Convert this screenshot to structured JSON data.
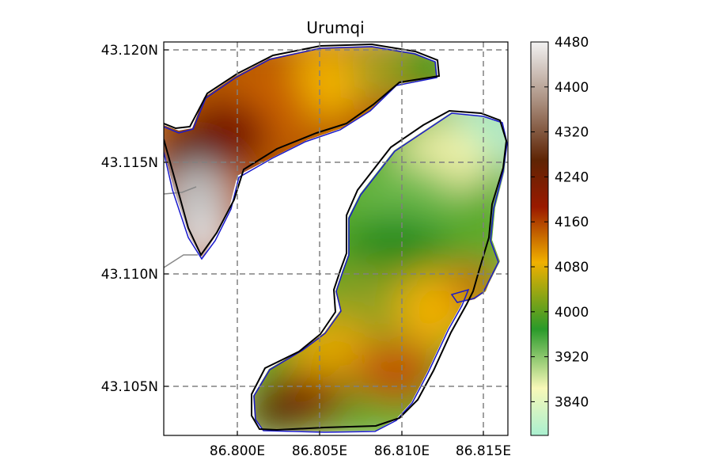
{
  "chart_data": {
    "type": "heatmap",
    "title": "Urumqi",
    "x_ticks": [
      "86.800E",
      "86.805E",
      "86.810E",
      "86.815E"
    ],
    "y_ticks": [
      "43.120N",
      "43.115N",
      "43.110N",
      "43.105N"
    ],
    "colorbar": {
      "ticks": [
        "4480",
        "4400",
        "4320",
        "4240",
        "4160",
        "4080",
        "4000",
        "3920",
        "3840"
      ],
      "range": [
        3780,
        4480
      ]
    },
    "grid": true,
    "grid_style": "dashed",
    "colors": {
      "glacier_outline_new": "#000000",
      "glacier_outline_old": "#0000cc",
      "neighbor_outline": "#888888",
      "grid": "#808080"
    },
    "colormap": [
      "#aaf0d0",
      "#f8f8b8",
      "#2a9a2a",
      "#f0b000",
      "#9a1a00",
      "#5e2404",
      "#aa9080",
      "#f2f2f2"
    ]
  }
}
